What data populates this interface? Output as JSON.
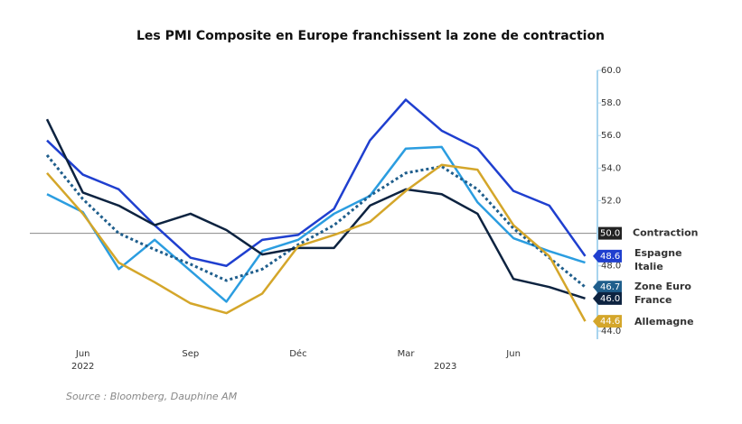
{
  "chart_data": {
    "type": "line",
    "title": "Les PMI Composite en Europe franchissent la zone de contraction",
    "categories": [
      null,
      "Jun",
      null,
      null,
      "Sep",
      null,
      null,
      "Déc",
      null,
      null,
      "Mar",
      null,
      null,
      "Jun",
      null,
      null
    ],
    "years": [
      "2022",
      "2023"
    ],
    "ylim": [
      43.5,
      60
    ],
    "yticks": [
      {
        "value": 44,
        "label": "44.0"
      },
      {
        "value": 46,
        "label": "46.0"
      },
      {
        "value": 48,
        "label": "48.0"
      },
      {
        "value": 50,
        "label": "50.0"
      },
      {
        "value": 52,
        "label": "52.0"
      },
      {
        "value": 54,
        "label": "54.0"
      },
      {
        "value": 56,
        "label": "56.0"
      },
      {
        "value": 58,
        "label": "58.0"
      },
      {
        "value": 60,
        "label": "60.0"
      }
    ],
    "reference_line": {
      "name": "Contraction",
      "value": 50,
      "label": "50.0",
      "color": "#888888"
    },
    "series": [
      {
        "name": "Espagne",
        "color": "#1f3fcf",
        "dash": false,
        "values": [
          55.7,
          53.6,
          52.7,
          50.5,
          48.5,
          48.0,
          49.6,
          49.9,
          51.5,
          55.7,
          58.2,
          56.3,
          55.2,
          52.6,
          51.7,
          48.6
        ],
        "value_labels": [
          null,
          null,
          null,
          null,
          null,
          null,
          null,
          null,
          null,
          null,
          null,
          null,
          null,
          null,
          null,
          "48.6"
        ]
      },
      {
        "name": "Italie",
        "color": "#2b9de0",
        "dash": false,
        "values": [
          52.4,
          51.3,
          47.8,
          49.6,
          47.7,
          45.8,
          48.9,
          49.6,
          51.2,
          52.3,
          55.2,
          55.3,
          51.9,
          49.7,
          48.9,
          48.2
        ]
      },
      {
        "name": "Zone Euro",
        "color": "#1f5e8c",
        "dash": true,
        "values": [
          54.8,
          52.1,
          50.0,
          49.0,
          48.1,
          47.1,
          47.8,
          49.3,
          50.5,
          52.3,
          53.7,
          54.1,
          52.7,
          50.3,
          48.5,
          46.7
        ],
        "value_labels": [
          null,
          null,
          null,
          null,
          null,
          null,
          null,
          null,
          null,
          null,
          null,
          null,
          null,
          null,
          null,
          "46.7"
        ]
      },
      {
        "name": "France",
        "color": "#0d2340",
        "dash": false,
        "values": [
          57.0,
          52.5,
          51.7,
          50.5,
          51.2,
          50.2,
          48.7,
          49.1,
          49.1,
          51.7,
          52.7,
          52.4,
          51.2,
          47.2,
          46.7,
          46.0
        ],
        "value_labels": [
          null,
          null,
          null,
          null,
          null,
          null,
          null,
          null,
          null,
          null,
          null,
          null,
          null,
          null,
          null,
          "46.0"
        ]
      },
      {
        "name": "Allemagne",
        "color": "#d4a62a",
        "dash": false,
        "values": [
          53.7,
          51.2,
          48.2,
          47.0,
          45.7,
          45.1,
          46.3,
          49.2,
          49.9,
          50.7,
          52.6,
          54.2,
          53.9,
          50.5,
          48.6,
          44.6
        ],
        "value_labels": [
          null,
          null,
          null,
          null,
          null,
          null,
          null,
          null,
          null,
          null,
          null,
          null,
          null,
          null,
          null,
          "44.6"
        ]
      }
    ],
    "source": "Source : Bloomberg, Dauphine AM"
  }
}
